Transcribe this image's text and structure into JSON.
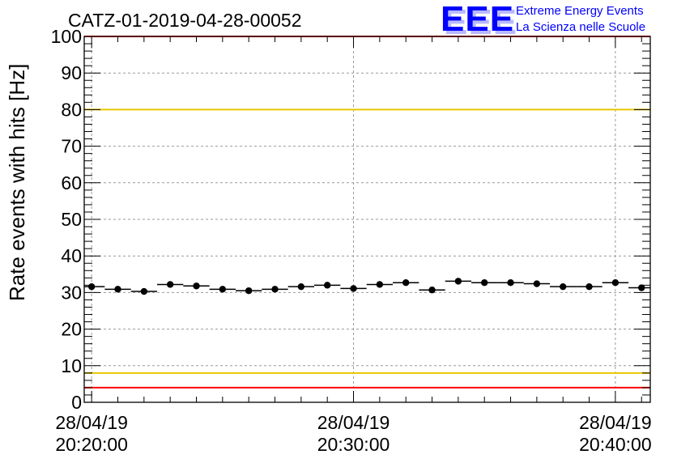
{
  "title": "CATZ-01-2019-04-28-00052",
  "logo": {
    "mark": "EEE",
    "line1": "Extreme Energy Events",
    "line2": "La Scienza nelle Scuole"
  },
  "colors": {
    "threshold_high": "#e8c800",
    "threshold_low": "#e8c800",
    "limit_lines": "#ff0000",
    "logo": "#0000ff",
    "points": "#000000"
  },
  "chart_data": {
    "type": "scatter",
    "title": "CATZ-01-2019-04-28-00052",
    "xlabel": "",
    "ylabel": "Rate events with hits [Hz]",
    "ylim": [
      0,
      100
    ],
    "xlim": [
      "2019-04-28 20:19:43",
      "2019-04-28 20:41:20"
    ],
    "x_ticks": [
      {
        "date": "28/04/19",
        "time": "20:20:00"
      },
      {
        "date": "28/04/19",
        "time": "20:30:00"
      },
      {
        "date": "28/04/19",
        "time": "20:40:00"
      }
    ],
    "y_ticks": [
      0,
      10,
      20,
      30,
      40,
      50,
      60,
      70,
      80,
      90,
      100
    ],
    "grid": true,
    "bin_seconds": 60,
    "points": [
      {
        "x": "2019-04-28 20:20:00",
        "y": 31.6
      },
      {
        "x": "2019-04-28 20:21:00",
        "y": 30.9
      },
      {
        "x": "2019-04-28 20:22:00",
        "y": 30.3
      },
      {
        "x": "2019-04-28 20:23:00",
        "y": 32.2
      },
      {
        "x": "2019-04-28 20:24:00",
        "y": 31.8
      },
      {
        "x": "2019-04-28 20:25:00",
        "y": 30.9
      },
      {
        "x": "2019-04-28 20:26:00",
        "y": 30.5
      },
      {
        "x": "2019-04-28 20:27:00",
        "y": 30.9
      },
      {
        "x": "2019-04-28 20:28:00",
        "y": 31.6
      },
      {
        "x": "2019-04-28 20:29:00",
        "y": 32.0
      },
      {
        "x": "2019-04-28 20:30:00",
        "y": 31.1
      },
      {
        "x": "2019-04-28 20:31:00",
        "y": 32.2
      },
      {
        "x": "2019-04-28 20:32:00",
        "y": 32.7
      },
      {
        "x": "2019-04-28 20:33:00",
        "y": 30.7
      },
      {
        "x": "2019-04-28 20:34:00",
        "y": 33.1
      },
      {
        "x": "2019-04-28 20:35:00",
        "y": 32.7
      },
      {
        "x": "2019-04-28 20:36:00",
        "y": 32.7
      },
      {
        "x": "2019-04-28 20:37:00",
        "y": 32.4
      },
      {
        "x": "2019-04-28 20:38:00",
        "y": 31.6
      },
      {
        "x": "2019-04-28 20:39:00",
        "y": 31.6
      },
      {
        "x": "2019-04-28 20:40:00",
        "y": 32.7
      },
      {
        "x": "2019-04-28 20:41:00",
        "y": 31.3
      }
    ],
    "reference_lines": [
      {
        "y": 100,
        "color": "red"
      },
      {
        "y": 80,
        "color": "yellow"
      },
      {
        "y": 8,
        "color": "yellow"
      },
      {
        "y": 4,
        "color": "red"
      }
    ]
  }
}
